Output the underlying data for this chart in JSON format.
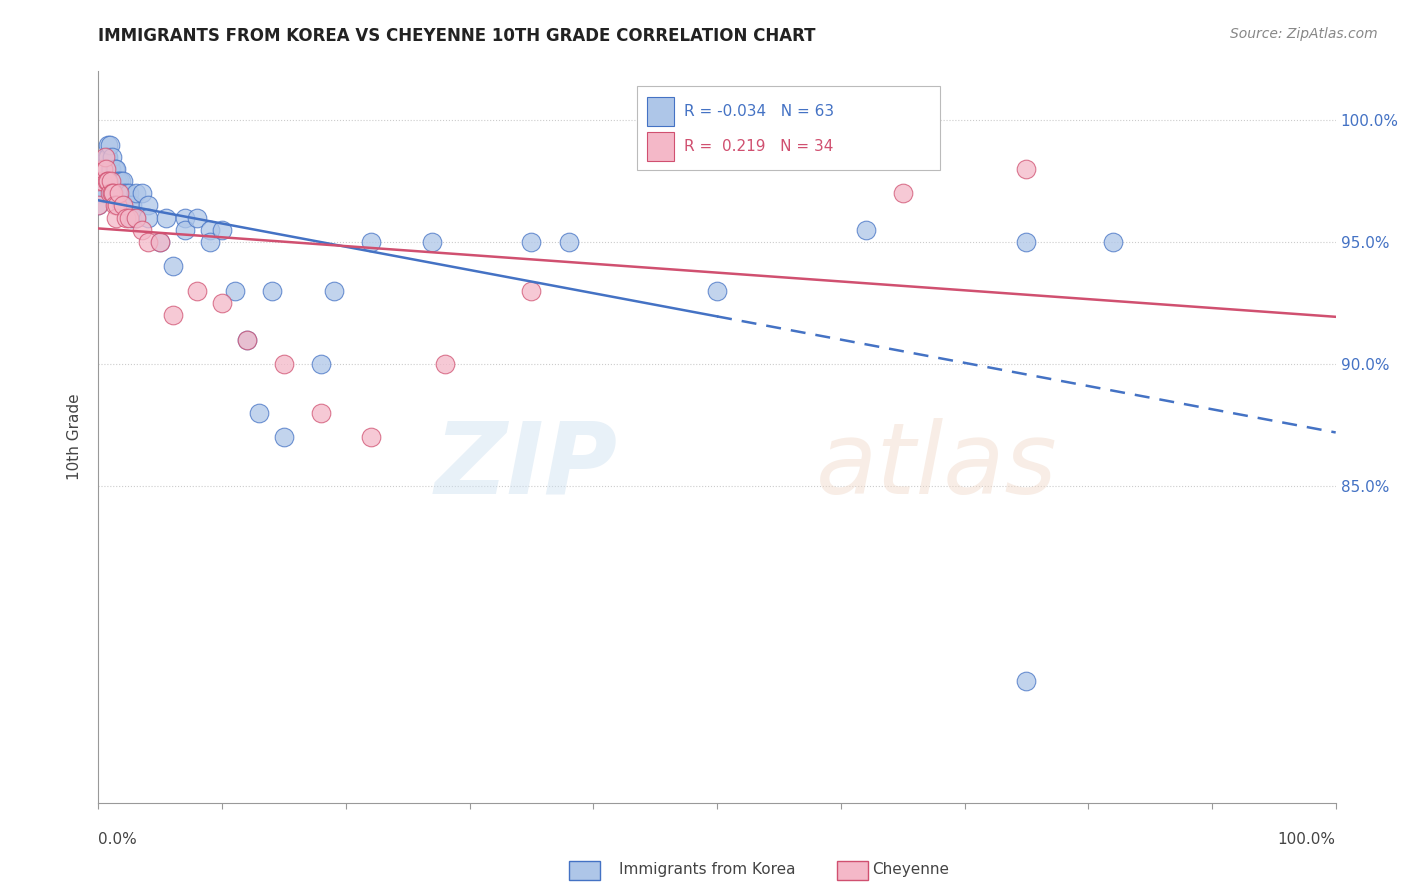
{
  "title": "IMMIGRANTS FROM KOREA VS CHEYENNE 10TH GRADE CORRELATION CHART",
  "source": "Source: ZipAtlas.com",
  "ylabel": "10th Grade",
  "legend_blue_r": "-0.034",
  "legend_blue_n": "63",
  "legend_pink_r": "0.219",
  "legend_pink_n": "34",
  "blue_color": "#aec6e8",
  "pink_color": "#f4b8c8",
  "blue_line_color": "#4472c4",
  "pink_line_color": "#d05070",
  "ytick_labels": [
    "100.0%",
    "95.0%",
    "90.0%",
    "85.0%"
  ],
  "ytick_values": [
    1.0,
    0.95,
    0.9,
    0.85
  ],
  "xlim": [
    0.0,
    1.0
  ],
  "ylim": [
    0.72,
    1.02
  ],
  "blue_scatter_x": [
    0.0,
    0.0,
    0.005,
    0.005,
    0.007,
    0.007,
    0.008,
    0.008,
    0.009,
    0.009,
    0.01,
    0.01,
    0.01,
    0.011,
    0.011,
    0.012,
    0.012,
    0.013,
    0.013,
    0.014,
    0.015,
    0.015,
    0.016,
    0.017,
    0.018,
    0.018,
    0.02,
    0.02,
    0.022,
    0.025,
    0.025,
    0.027,
    0.027,
    0.03,
    0.03,
    0.035,
    0.04,
    0.04,
    0.05,
    0.055,
    0.06,
    0.07,
    0.07,
    0.08,
    0.09,
    0.09,
    0.1,
    0.11,
    0.12,
    0.13,
    0.14,
    0.15,
    0.18,
    0.19,
    0.22,
    0.27,
    0.35,
    0.38,
    0.5,
    0.62,
    0.75,
    0.82,
    0.75
  ],
  "blue_scatter_y": [
    0.97,
    0.965,
    0.975,
    0.97,
    0.985,
    0.975,
    0.99,
    0.985,
    0.99,
    0.98,
    0.98,
    0.975,
    0.97,
    0.985,
    0.975,
    0.975,
    0.97,
    0.98,
    0.97,
    0.98,
    0.975,
    0.97,
    0.97,
    0.975,
    0.975,
    0.965,
    0.975,
    0.97,
    0.97,
    0.97,
    0.965,
    0.965,
    0.96,
    0.97,
    0.96,
    0.97,
    0.965,
    0.96,
    0.95,
    0.96,
    0.94,
    0.96,
    0.955,
    0.96,
    0.955,
    0.95,
    0.955,
    0.93,
    0.91,
    0.88,
    0.93,
    0.87,
    0.9,
    0.93,
    0.95,
    0.95,
    0.95,
    0.95,
    0.93,
    0.955,
    0.95,
    0.95,
    0.77
  ],
  "pink_scatter_x": [
    0.0,
    0.0,
    0.003,
    0.004,
    0.005,
    0.006,
    0.007,
    0.008,
    0.009,
    0.01,
    0.011,
    0.012,
    0.013,
    0.014,
    0.015,
    0.017,
    0.02,
    0.022,
    0.025,
    0.03,
    0.035,
    0.04,
    0.05,
    0.06,
    0.08,
    0.1,
    0.12,
    0.15,
    0.18,
    0.22,
    0.28,
    0.35,
    0.65,
    0.75
  ],
  "pink_scatter_y": [
    0.965,
    0.975,
    0.975,
    0.98,
    0.985,
    0.98,
    0.975,
    0.975,
    0.97,
    0.975,
    0.97,
    0.97,
    0.965,
    0.96,
    0.965,
    0.97,
    0.965,
    0.96,
    0.96,
    0.96,
    0.955,
    0.95,
    0.95,
    0.92,
    0.93,
    0.925,
    0.91,
    0.9,
    0.88,
    0.87,
    0.9,
    0.93,
    0.97,
    0.98
  ]
}
